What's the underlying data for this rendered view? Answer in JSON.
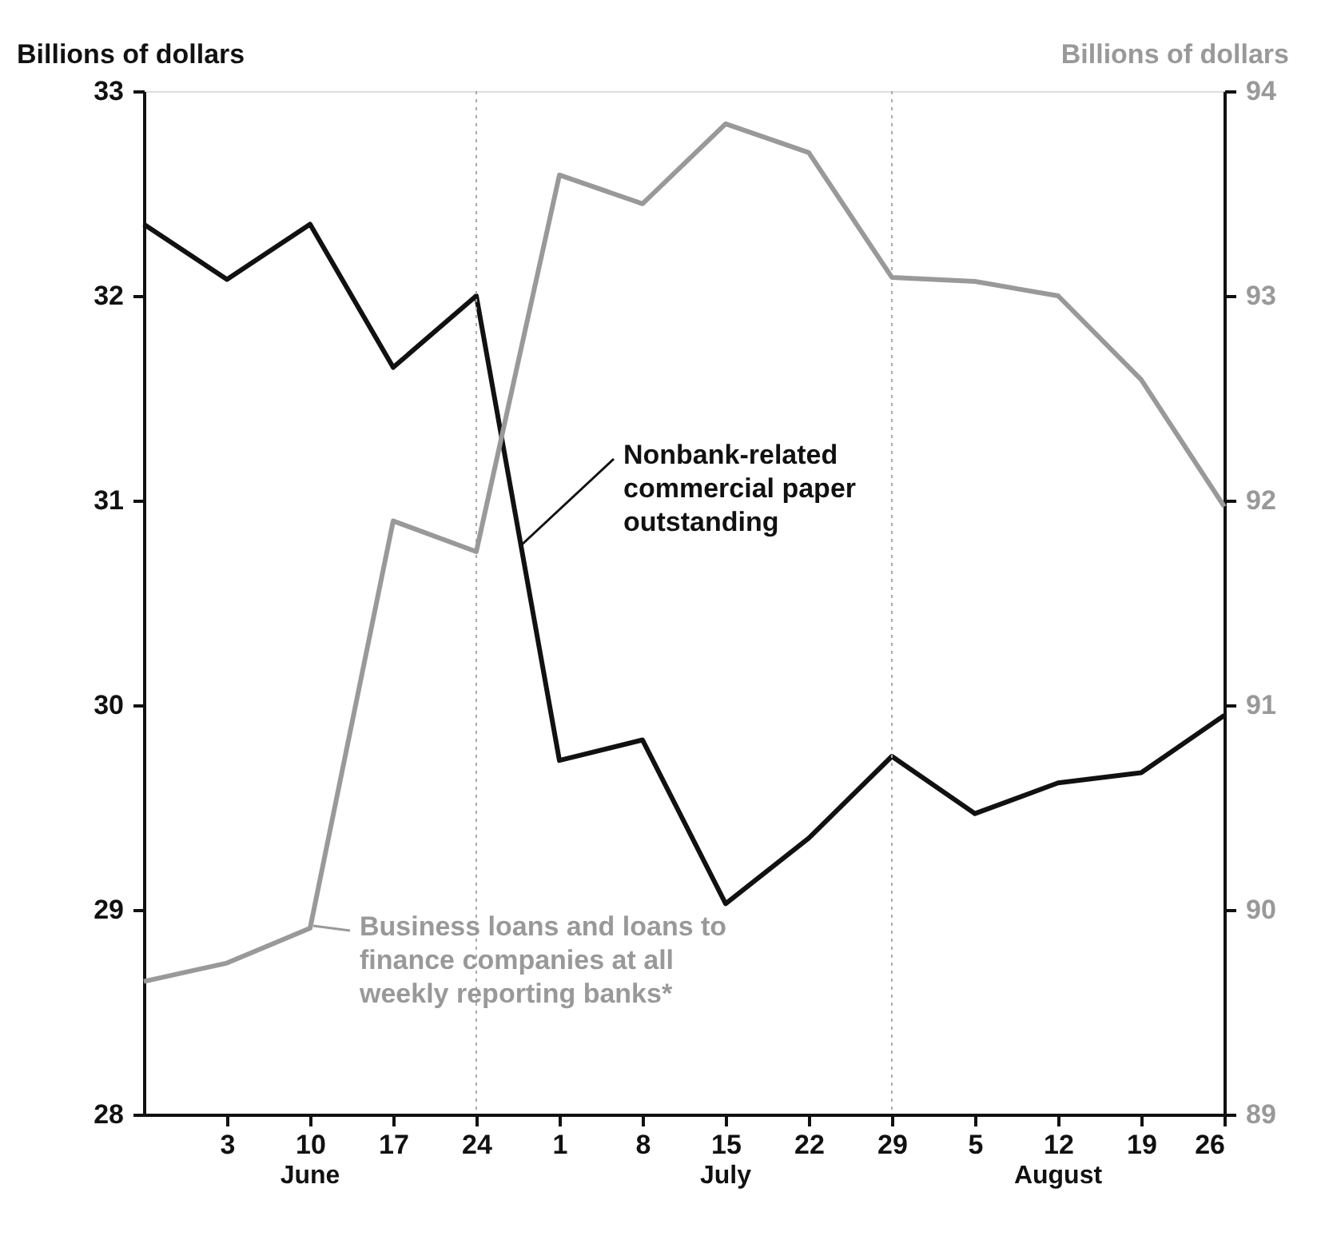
{
  "chart_data": {
    "type": "line",
    "categories": [
      null,
      "3",
      "10",
      "17",
      "24",
      "1",
      "8",
      "15",
      "22",
      "29",
      "5",
      "12",
      "19",
      "26"
    ],
    "ylabel": "Billions of dollars",
    "y2label": "Billions of dollars",
    "ylim": [
      28,
      33
    ],
    "yticks": [
      28,
      29,
      30,
      31,
      32,
      33
    ],
    "y2lim": [
      89,
      94
    ],
    "y2ticks": [
      89,
      90,
      91,
      92,
      93,
      94
    ],
    "series": [
      {
        "name": "Nonbank-related commercial paper outstanding",
        "color": "#111111",
        "values": [
          32.35,
          32.08,
          32.35,
          31.65,
          32.0,
          29.73,
          29.83,
          29.03,
          29.35,
          29.75,
          29.47,
          29.62,
          29.67,
          29.95
        ]
      },
      {
        "name": "Business loans and loans to finance companies at all weekly reporting banks*",
        "color": "#999999",
        "axis": "y2",
        "values": [
          89.65,
          89.74,
          89.91,
          91.9,
          91.75,
          93.59,
          93.45,
          93.84,
          93.7,
          93.09,
          93.07,
          93.0,
          92.59,
          91.97
        ]
      }
    ],
    "ref_lines": [
      {
        "axis": "x",
        "value": "24",
        "color": "#aaaaaa",
        "line_style": "dotted"
      },
      {
        "axis": "x",
        "value": "29",
        "color": "#aaaaaa",
        "line_style": "dotted"
      }
    ],
    "annotations": [
      "June",
      "July",
      "August"
    ],
    "grid": false,
    "legend": "center",
    "marker": "none",
    "line_style": "solid"
  }
}
